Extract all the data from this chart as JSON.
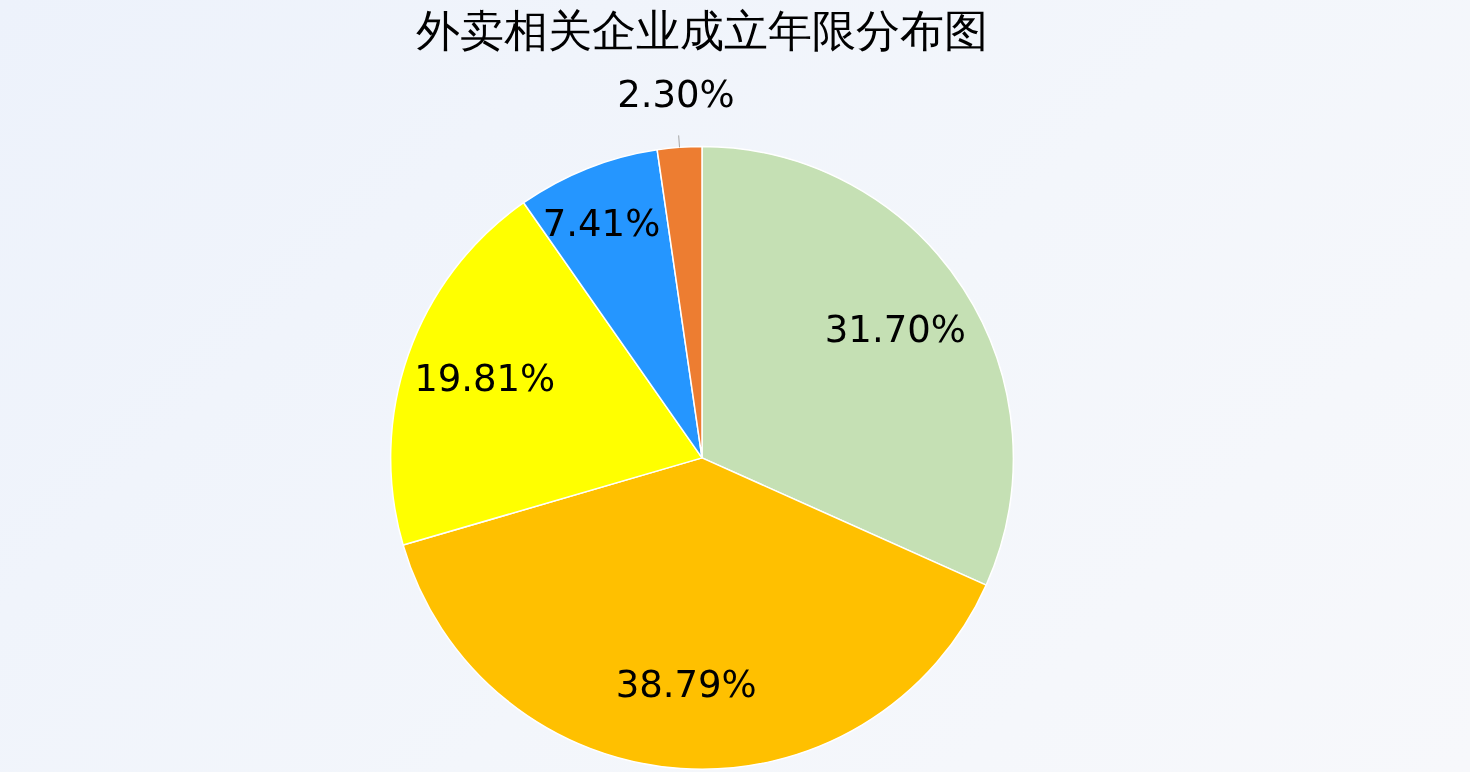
{
  "chart_data": {
    "type": "pie",
    "title": "外卖相关企业成立年限分布图",
    "categories": [
      null,
      null,
      null,
      null,
      null
    ],
    "values": [
      31.7,
      38.79,
      19.81,
      7.41,
      2.3
    ],
    "colors": [
      "#c5e0b4",
      "#ffc000",
      "#ffff00",
      "#2596ff",
      "#ed7d31"
    ],
    "value_labels": [
      "31.70%",
      "38.79%",
      "19.81%",
      "7.41%",
      "2.30%"
    ]
  }
}
